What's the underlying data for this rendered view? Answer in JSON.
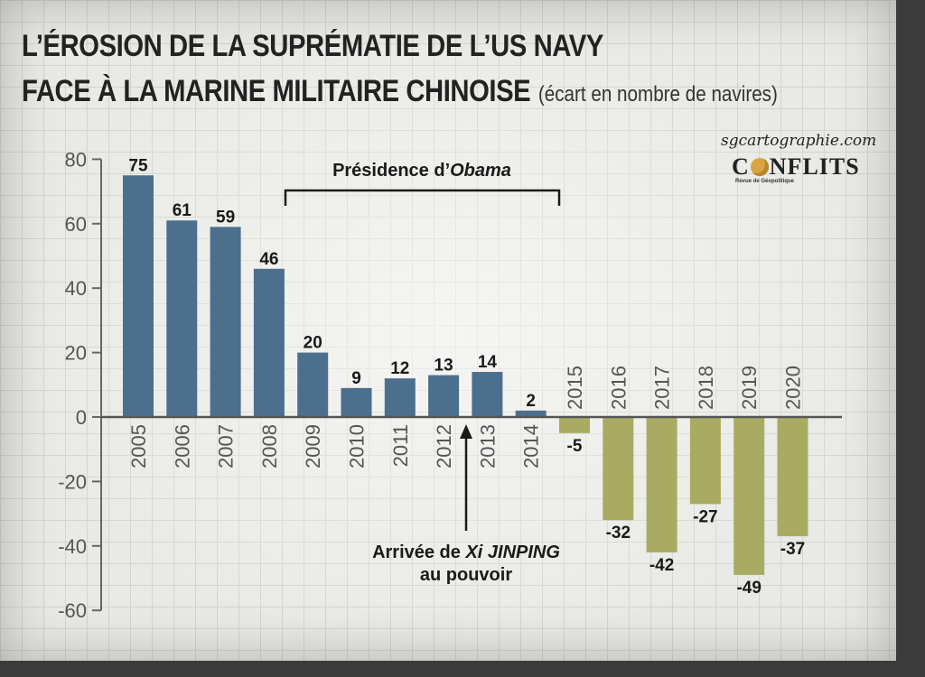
{
  "header": {
    "title_line1": "L’ÉROSION DE LA SUPRÉMATIE DE L’US NAVY",
    "title_line2": "FACE À LA MARINE MILITAIRE CHINOISE",
    "subtitle": "(écart en nombre de navires)"
  },
  "brand": {
    "url": "sgcartographie.com",
    "logo_pre": "C",
    "logo_post": "NFLITS",
    "tagline": "Revue de Géopolitique"
  },
  "annotations": {
    "obama_prefix": "Présidence d’",
    "obama_name": "Obama",
    "xi_line1_prefix": "Arrivée de ",
    "xi_line1_name": "Xi JINPING",
    "xi_line2": "au pouvoir"
  },
  "chart_data": {
    "type": "bar",
    "categories": [
      "2005",
      "2006",
      "2007",
      "2008",
      "2009",
      "2010",
      "2011",
      "2012",
      "2013",
      "2014",
      "2015",
      "2016",
      "2017",
      "2018",
      "2019",
      "2020"
    ],
    "values": [
      75,
      61,
      59,
      46,
      20,
      9,
      12,
      13,
      14,
      2,
      -5,
      -32,
      -42,
      -27,
      -49,
      -37
    ],
    "ylim": [
      -60,
      80
    ],
    "yticks": [
      80,
      60,
      40,
      20,
      0,
      -20,
      -40,
      -60
    ],
    "grid": true,
    "colors": {
      "positive": "#4d6f8e",
      "negative": "#a9ab63"
    }
  }
}
